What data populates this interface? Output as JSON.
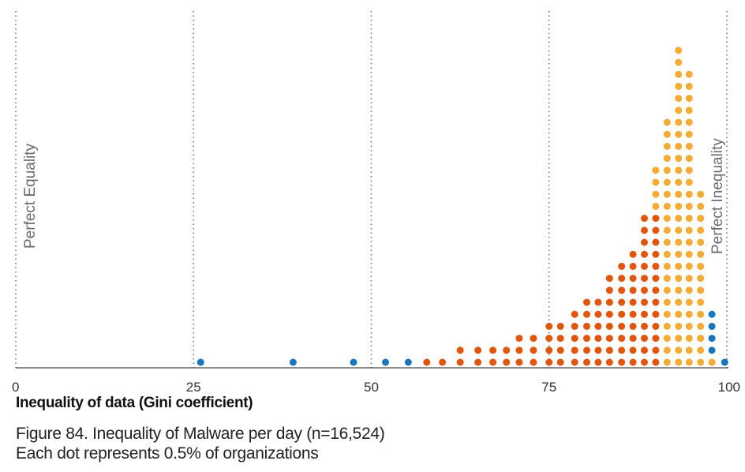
{
  "chart_data": {
    "type": "scatter",
    "subtype": "dot-plot",
    "xlabel": "Inequality of data (Gini coefficient)",
    "xlim": [
      0,
      100
    ],
    "xticks": [
      "0",
      "25",
      "50",
      "75",
      "100"
    ],
    "gridlines_at": [
      25,
      50,
      75
    ],
    "grid_style": "dotted vertical",
    "annotations": [
      {
        "text": "Perfect Equality",
        "at_x": 0
      },
      {
        "text": "Perfect Inequality",
        "at_x": 100
      }
    ],
    "caption_line1": "Figure 84. Inequality of Malware per day (n=16,524)",
    "caption_line2": "Each dot represents 0.5% of organizations",
    "colors": {
      "blue": "#1b75bc",
      "red": "#e0560f",
      "orange": "#f5ab35"
    },
    "columns": [
      {
        "x": 26.0,
        "counts": {
          "blue": 1
        }
      },
      {
        "x": 39.0,
        "counts": {
          "blue": 1
        }
      },
      {
        "x": 47.5,
        "counts": {
          "blue": 1
        }
      },
      {
        "x": 52.0,
        "counts": {
          "blue": 1
        }
      },
      {
        "x": 55.2,
        "counts": {
          "blue": 1
        }
      },
      {
        "x": 57.8,
        "counts": {
          "red": 1
        }
      },
      {
        "x": 60.0,
        "counts": {
          "red": 1
        }
      },
      {
        "x": 62.5,
        "counts": {
          "red": 2
        }
      },
      {
        "x": 65.0,
        "counts": {
          "red": 2
        }
      },
      {
        "x": 67.1,
        "counts": {
          "red": 2
        }
      },
      {
        "x": 69.0,
        "counts": {
          "red": 2
        }
      },
      {
        "x": 70.8,
        "counts": {
          "red": 3
        }
      },
      {
        "x": 72.8,
        "counts": {
          "red": 3
        }
      },
      {
        "x": 75.0,
        "counts": {
          "red": 4
        }
      },
      {
        "x": 76.6,
        "counts": {
          "red": 4
        }
      },
      {
        "x": 78.6,
        "counts": {
          "red": 5
        }
      },
      {
        "x": 80.3,
        "counts": {
          "red": 6
        }
      },
      {
        "x": 81.9,
        "counts": {
          "red": 6
        }
      },
      {
        "x": 83.5,
        "counts": {
          "red": 8
        }
      },
      {
        "x": 85.2,
        "counts": {
          "red": 9
        }
      },
      {
        "x": 86.8,
        "counts": {
          "red": 10
        }
      },
      {
        "x": 88.4,
        "counts": {
          "red": 13
        }
      },
      {
        "x": 90.0,
        "counts": {
          "red": 13,
          "orange": 4
        }
      },
      {
        "x": 91.6,
        "counts": {
          "orange": 21
        }
      },
      {
        "x": 93.2,
        "counts": {
          "orange": 27
        }
      },
      {
        "x": 94.7,
        "counts": {
          "orange": 25
        }
      },
      {
        "x": 96.3,
        "counts": {
          "orange": 15
        }
      },
      {
        "x": 97.9,
        "counts": {
          "orange": 1,
          "blue": 4
        }
      },
      {
        "x": 99.7,
        "counts": {
          "blue": 1
        }
      }
    ]
  }
}
